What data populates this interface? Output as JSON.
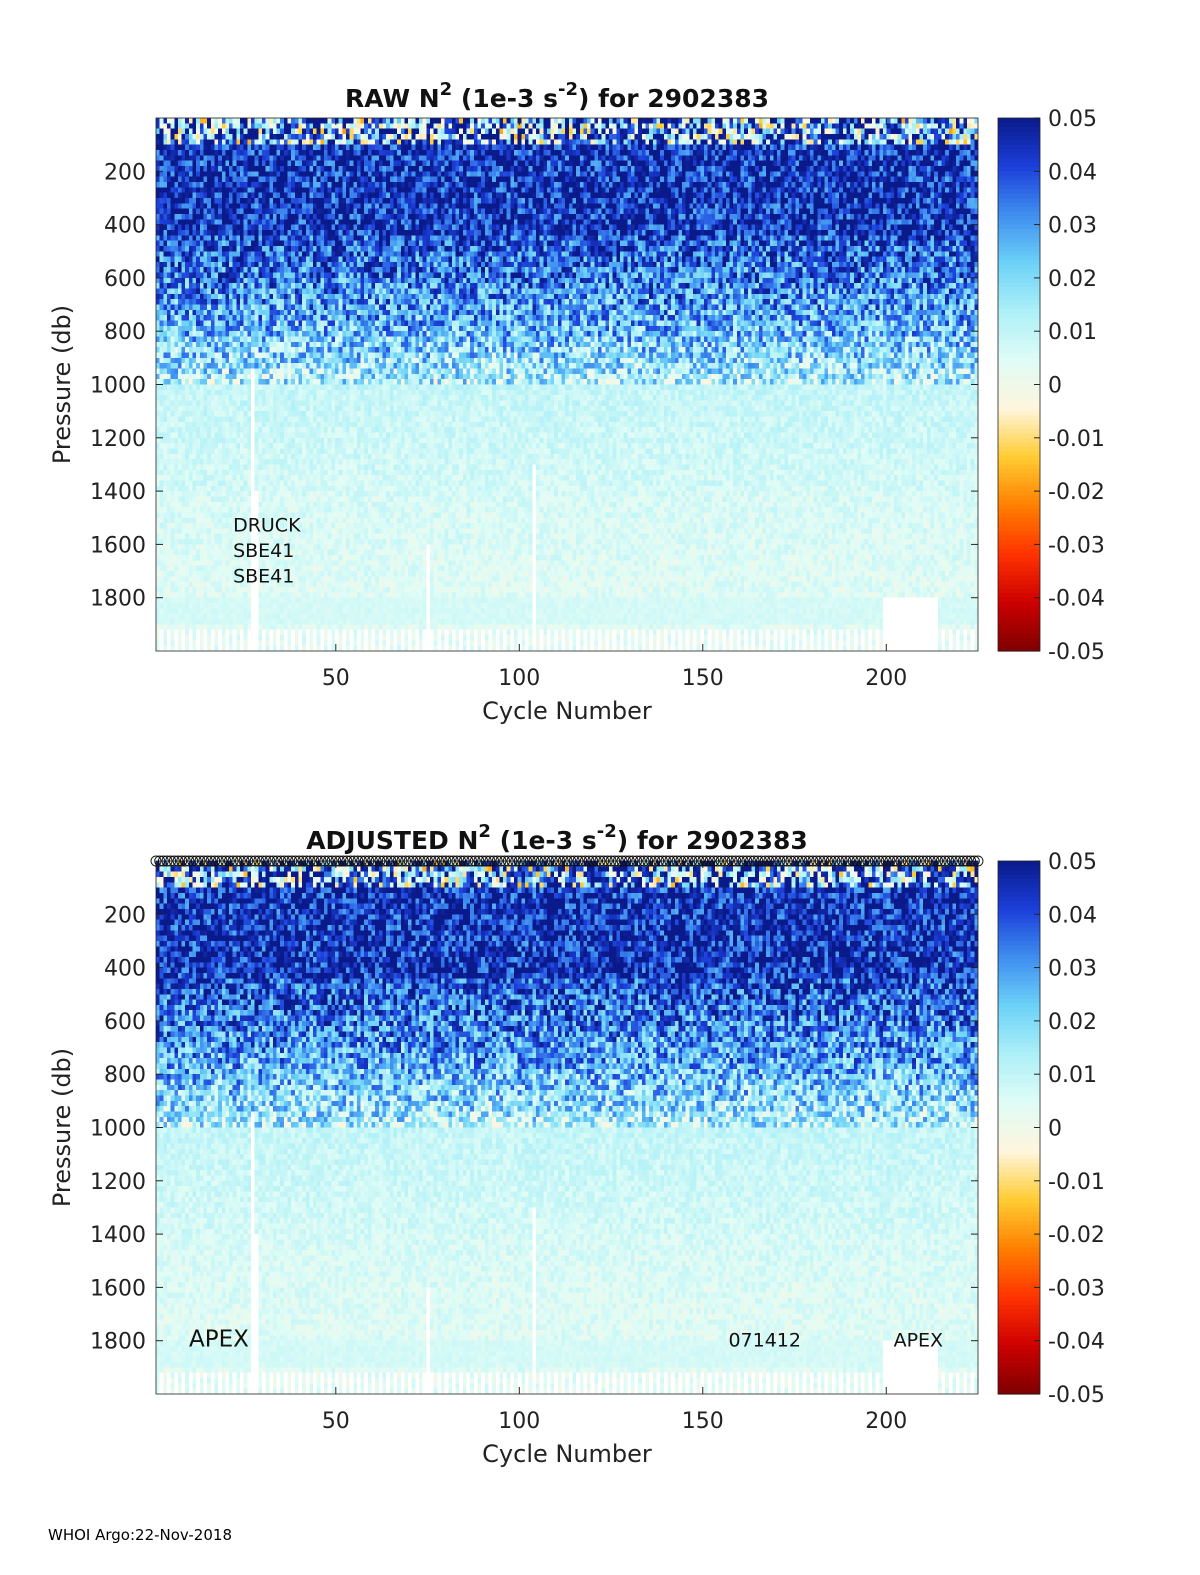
{
  "footer": "WHOI Argo:22-Nov-2018",
  "colormap": [
    "#7f0000",
    "#cc0000",
    "#ff3300",
    "#ff8000",
    "#ffcc33",
    "#fff5dd",
    "#dffcf6",
    "#aef0f8",
    "#6dd2f7",
    "#3f8ff0",
    "#1c3fda",
    "#0a1a8a"
  ],
  "chart_data": [
    {
      "type": "heatmap",
      "title_main": "RAW N",
      "title_sup": "2",
      "title_mid": " (1e-3 s",
      "title_sup2": "-2",
      "title_end": ") for 2902383",
      "xlabel": "Cycle Number",
      "ylabel": "Pressure (db)",
      "xlim": [
        1,
        225
      ],
      "ylim": [
        0,
        2000
      ],
      "x_ticks": [
        50,
        100,
        150,
        200
      ],
      "y_ticks": [
        200,
        400,
        600,
        800,
        1000,
        1200,
        1400,
        1600,
        1800
      ],
      "colorbar": {
        "range": [
          -0.05,
          0.05
        ],
        "ticks": [
          "0.05",
          "0.04",
          "0.03",
          "0.02",
          "0.01",
          "0",
          "-0.01",
          "-0.02",
          "-0.03",
          "-0.04",
          "-0.05"
        ]
      },
      "annotations": [
        {
          "text": "DRUCK",
          "x": 22,
          "y": 1530
        },
        {
          "text": "SBE41",
          "x": 22,
          "y": 1625
        },
        {
          "text": "SBE41",
          "x": 22,
          "y": 1720
        }
      ],
      "gaps": [
        {
          "x": 27,
          "from": 950,
          "to": 2000
        },
        {
          "x": 28,
          "from": 1400,
          "to": 2000
        },
        {
          "x": 75,
          "from": 1600,
          "to": 2000
        },
        {
          "x": 104,
          "from": 1300,
          "to": 2000
        }
      ],
      "blank_region": {
        "x_from": 200,
        "x_to": 214,
        "p_from": 1800,
        "p_to": 2000
      },
      "profile_markers": false
    },
    {
      "type": "heatmap",
      "title_main": "ADJUSTED N",
      "title_sup": "2",
      "title_mid": " (1e-3 s",
      "title_sup2": "-2",
      "title_end": ") for 2902383",
      "xlabel": "Cycle Number",
      "ylabel": "Pressure (db)",
      "xlim": [
        1,
        225
      ],
      "ylim": [
        0,
        2000
      ],
      "x_ticks": [
        50,
        100,
        150,
        200
      ],
      "y_ticks": [
        200,
        400,
        600,
        800,
        1000,
        1200,
        1400,
        1600,
        1800
      ],
      "colorbar": {
        "range": [
          -0.05,
          0.05
        ],
        "ticks": [
          "0.05",
          "0.04",
          "0.03",
          "0.02",
          "0.01",
          "0",
          "-0.01",
          "-0.02",
          "-0.03",
          "-0.04",
          "-0.05"
        ]
      },
      "annotations": [
        {
          "text": "APEX",
          "x": 10,
          "y": 1800,
          "size": "large"
        },
        {
          "text": "071412",
          "x": 157,
          "y": 1800
        },
        {
          "text": "APEX",
          "x": 202,
          "y": 1800
        }
      ],
      "gaps": [
        {
          "x": 27,
          "from": 950,
          "to": 2000
        },
        {
          "x": 28,
          "from": 1400,
          "to": 2000
        },
        {
          "x": 75,
          "from": 1600,
          "to": 2000
        },
        {
          "x": 104,
          "from": 1300,
          "to": 2000
        }
      ],
      "blank_region": {
        "x_from": 200,
        "x_to": 214,
        "p_from": 1800,
        "p_to": 2000
      },
      "profile_markers": true
    }
  ]
}
